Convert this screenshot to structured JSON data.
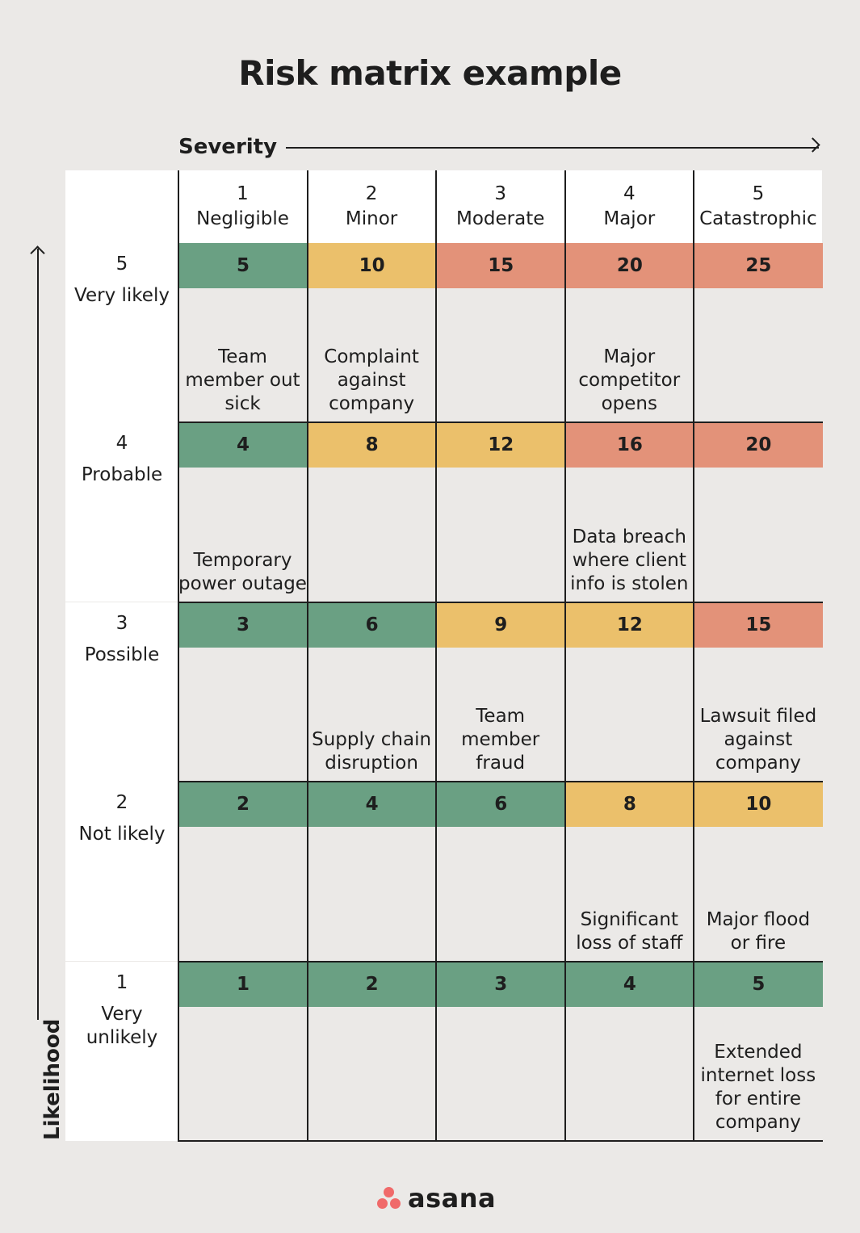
{
  "title": "Risk matrix example",
  "severity_label": "Severity",
  "likelihood_label": "Likelihood",
  "colors": {
    "green": "#6aa083",
    "yellow": "#ebc06b",
    "red": "#e39279"
  },
  "columns": [
    {
      "num": "1",
      "name": "Negligible"
    },
    {
      "num": "2",
      "name": "Minor"
    },
    {
      "num": "3",
      "name": "Moderate"
    },
    {
      "num": "4",
      "name": "Major"
    },
    {
      "num": "5",
      "name": "Catastrophic"
    }
  ],
  "rows": [
    {
      "num": "5",
      "name": "Very likely",
      "scores": [
        "5",
        "10",
        "15",
        "20",
        "25"
      ],
      "levels": [
        "green",
        "yellow",
        "red",
        "red",
        "red"
      ],
      "examples": [
        "Team member out sick",
        "Complaint against company",
        "",
        "Major competitor opens",
        ""
      ]
    },
    {
      "num": "4",
      "name": "Probable",
      "scores": [
        "4",
        "8",
        "12",
        "16",
        "20"
      ],
      "levels": [
        "green",
        "yellow",
        "yellow",
        "red",
        "red"
      ],
      "examples": [
        "Temporary power outage",
        "",
        "",
        "Data breach where client info is stolen",
        ""
      ]
    },
    {
      "num": "3",
      "name": "Possible",
      "scores": [
        "3",
        "6",
        "9",
        "12",
        "15"
      ],
      "levels": [
        "green",
        "green",
        "yellow",
        "yellow",
        "red"
      ],
      "examples": [
        "",
        "Supply chain disruption",
        "Team member fraud",
        "",
        "Lawsuit filed against company"
      ]
    },
    {
      "num": "2",
      "name": "Not likely",
      "scores": [
        "2",
        "4",
        "6",
        "8",
        "10"
      ],
      "levels": [
        "green",
        "green",
        "green",
        "yellow",
        "yellow"
      ],
      "examples": [
        "",
        "",
        "",
        "Significant loss of staff",
        "Major flood or fire"
      ]
    },
    {
      "num": "1",
      "name": "Very unlikely",
      "scores": [
        "1",
        "2",
        "3",
        "4",
        "5"
      ],
      "levels": [
        "green",
        "green",
        "green",
        "green",
        "green"
      ],
      "examples": [
        "",
        "",
        "",
        "",
        "Extended internet loss for entire company"
      ]
    }
  ],
  "brand": "asana"
}
